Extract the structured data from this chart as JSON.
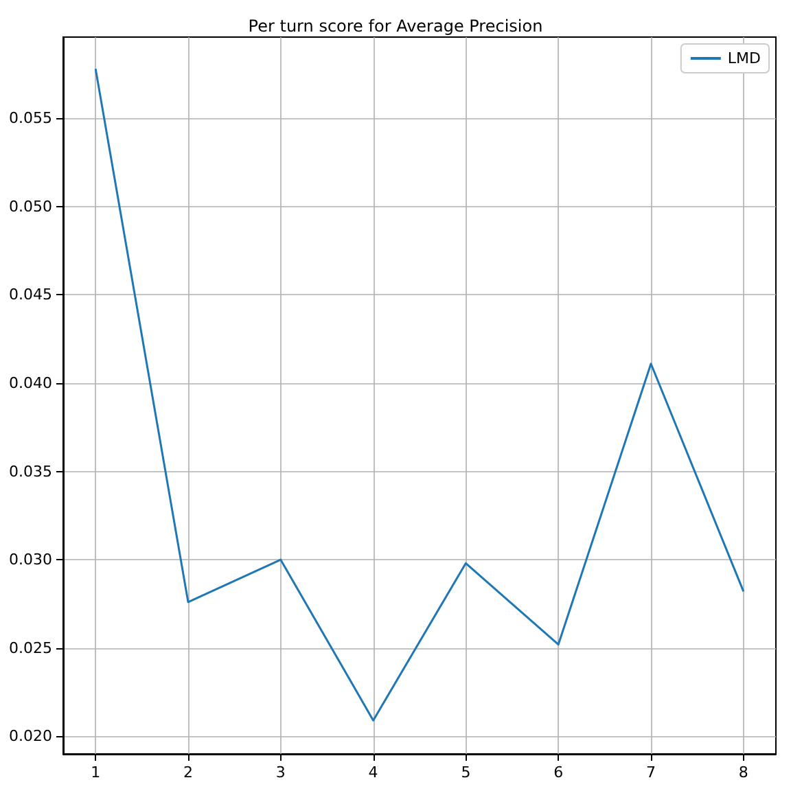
{
  "chart_data": {
    "type": "line",
    "title": "Per turn score for Average Precision",
    "x": [
      1,
      2,
      3,
      4,
      5,
      6,
      7,
      8
    ],
    "series": [
      {
        "name": "LMD",
        "color": "#1f77b4",
        "values": [
          0.0578,
          0.0276,
          0.03,
          0.0209,
          0.0298,
          0.0252,
          0.0411,
          0.0282
        ]
      }
    ],
    "xlim": [
      0.65,
      8.35
    ],
    "xticks": [
      1,
      2,
      3,
      4,
      5,
      6,
      7,
      8
    ],
    "ylim": [
      0.019,
      0.0596
    ],
    "yticks": [
      {
        "value": 0.02,
        "label": "0.020"
      },
      {
        "value": 0.025,
        "label": "0.025"
      },
      {
        "value": 0.03,
        "label": "0.030"
      },
      {
        "value": 0.035,
        "label": "0.035"
      },
      {
        "value": 0.04,
        "label": "0.040"
      },
      {
        "value": 0.045,
        "label": "0.045"
      },
      {
        "value": 0.05,
        "label": "0.050"
      },
      {
        "value": 0.055,
        "label": "0.055"
      }
    ],
    "grid": true,
    "legend": "top right",
    "line_style": "solid"
  }
}
